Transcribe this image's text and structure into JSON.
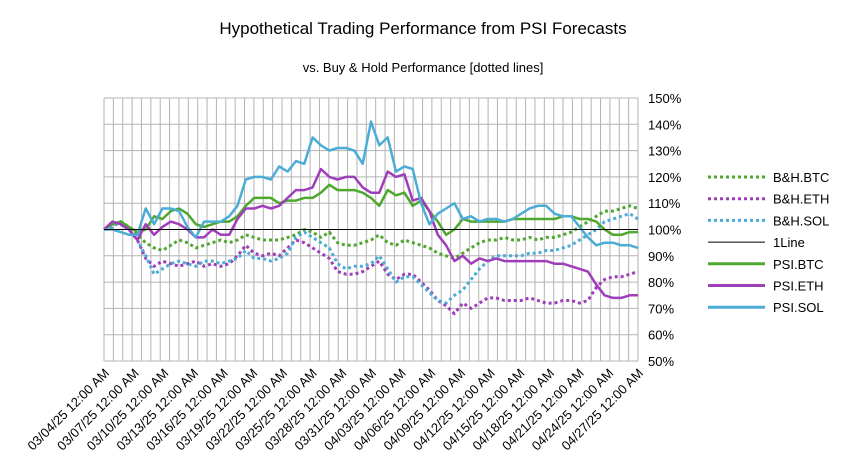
{
  "chart_data": {
    "type": "line",
    "title": "Hypothetical Trading Performance from PSI Forecasts",
    "subtitle": "vs. Buy & Hold Performance [dotted lines]",
    "xlabel": "",
    "ylabel": "",
    "ylim": [
      0.5,
      1.5
    ],
    "y_ticks": [
      "50%",
      "60%",
      "70%",
      "80%",
      "90%",
      "100%",
      "110%",
      "120%",
      "130%",
      "140%",
      "150%"
    ],
    "x_tick_labels": [
      "03/04/25 12:00 AM",
      "03/07/25 12:00 AM",
      "03/10/25 12:00 AM",
      "03/13/25 12:00 AM",
      "03/16/25 12:00 AM",
      "03/19/25 12:00 AM",
      "03/22/25 12:00 AM",
      "03/25/25 12:00 AM",
      "03/28/25 12:00 AM",
      "03/31/25 12:00 AM",
      "04/03/25 12:00 AM",
      "04/06/25 12:00 AM",
      "04/09/25 12:00 AM",
      "04/12/25 12:00 AM",
      "04/15/25 12:00 AM",
      "04/18/25 12:00 AM",
      "04/21/25 12:00 AM",
      "04/24/25 12:00 AM",
      "04/27/25 12:00 AM"
    ],
    "grid": true,
    "legend_position": "right",
    "series": [
      {
        "name": "B&H.BTC",
        "color": "#4ea72e",
        "style": "dotted",
        "values": [
          1.0,
          1.02,
          1.03,
          1.01,
          0.98,
          0.95,
          0.93,
          0.92,
          0.94,
          0.96,
          0.95,
          0.93,
          0.94,
          0.95,
          0.96,
          0.95,
          0.96,
          0.98,
          0.97,
          0.96,
          0.96,
          0.96,
          0.97,
          0.98,
          1.0,
          0.99,
          0.97,
          0.99,
          0.95,
          0.94,
          0.94,
          0.95,
          0.96,
          0.98,
          0.95,
          0.94,
          0.96,
          0.95,
          0.94,
          0.93,
          0.91,
          0.9,
          0.89,
          0.91,
          0.93,
          0.95,
          0.96,
          0.96,
          0.97,
          0.96,
          0.96,
          0.97,
          0.96,
          0.97,
          0.97,
          0.98,
          0.99,
          1.01,
          1.03,
          1.05,
          1.07,
          1.07,
          1.08,
          1.09,
          1.08
        ]
      },
      {
        "name": "B&H.ETH",
        "color": "#a03dba",
        "style": "dotted",
        "values": [
          1.0,
          1.02,
          1.02,
          1.0,
          0.96,
          0.89,
          0.86,
          0.88,
          0.87,
          0.86,
          0.87,
          0.88,
          0.86,
          0.87,
          0.86,
          0.87,
          0.9,
          0.94,
          0.91,
          0.9,
          0.91,
          0.9,
          0.93,
          0.96,
          0.95,
          0.93,
          0.91,
          0.89,
          0.84,
          0.83,
          0.83,
          0.84,
          0.86,
          0.88,
          0.83,
          0.81,
          0.83,
          0.83,
          0.8,
          0.77,
          0.73,
          0.71,
          0.68,
          0.72,
          0.7,
          0.72,
          0.74,
          0.74,
          0.73,
          0.73,
          0.73,
          0.74,
          0.73,
          0.72,
          0.72,
          0.73,
          0.73,
          0.72,
          0.73,
          0.78,
          0.81,
          0.82,
          0.82,
          0.83,
          0.84
        ]
      },
      {
        "name": "B&H.SOL",
        "color": "#4bacd6",
        "style": "dotted",
        "values": [
          1.0,
          1.01,
          1.03,
          1.0,
          0.96,
          0.9,
          0.83,
          0.85,
          0.87,
          0.88,
          0.87,
          0.86,
          0.88,
          0.88,
          0.87,
          0.88,
          0.89,
          0.92,
          0.89,
          0.89,
          0.88,
          0.89,
          0.91,
          0.97,
          0.99,
          0.97,
          0.95,
          0.93,
          0.87,
          0.85,
          0.86,
          0.86,
          0.87,
          0.9,
          0.85,
          0.8,
          0.82,
          0.82,
          0.79,
          0.76,
          0.73,
          0.72,
          0.75,
          0.77,
          0.81,
          0.85,
          0.88,
          0.9,
          0.9,
          0.9,
          0.9,
          0.91,
          0.91,
          0.92,
          0.92,
          0.93,
          0.94,
          0.96,
          0.98,
          1.0,
          1.03,
          1.04,
          1.05,
          1.06,
          1.04
        ]
      },
      {
        "name": "1Line",
        "color": "#000000",
        "style": "thin",
        "values": [
          1,
          1,
          1,
          1,
          1,
          1,
          1,
          1,
          1,
          1,
          1,
          1,
          1,
          1,
          1,
          1,
          1,
          1,
          1,
          1,
          1,
          1,
          1,
          1,
          1,
          1,
          1,
          1,
          1,
          1,
          1,
          1,
          1,
          1,
          1,
          1,
          1,
          1,
          1,
          1,
          1,
          1,
          1,
          1,
          1,
          1,
          1,
          1,
          1,
          1,
          1,
          1,
          1,
          1,
          1,
          1,
          1,
          1,
          1,
          1,
          1,
          1,
          1,
          1,
          1
        ]
      },
      {
        "name": "PSI.BTC",
        "color": "#4ea72e",
        "style": "solid",
        "values": [
          1.0,
          1.02,
          1.03,
          1.01,
          0.99,
          1.0,
          1.05,
          1.04,
          1.07,
          1.08,
          1.06,
          1.02,
          1.01,
          1.02,
          1.03,
          1.03,
          1.05,
          1.09,
          1.12,
          1.12,
          1.12,
          1.1,
          1.11,
          1.11,
          1.12,
          1.12,
          1.14,
          1.17,
          1.15,
          1.15,
          1.15,
          1.14,
          1.12,
          1.09,
          1.15,
          1.13,
          1.14,
          1.09,
          1.11,
          1.07,
          1.03,
          0.98,
          1.0,
          1.04,
          1.03,
          1.03,
          1.03,
          1.03,
          1.03,
          1.04,
          1.04,
          1.04,
          1.04,
          1.04,
          1.04,
          1.05,
          1.05,
          1.04,
          1.04,
          1.03,
          1.0,
          0.98,
          0.98,
          0.99,
          0.99
        ]
      },
      {
        "name": "PSI.ETH",
        "color": "#a03dba",
        "style": "solid",
        "values": [
          1.0,
          1.03,
          1.02,
          1.0,
          0.96,
          1.02,
          0.98,
          1.01,
          1.03,
          1.02,
          1.0,
          0.97,
          0.97,
          1.0,
          0.98,
          0.98,
          1.04,
          1.08,
          1.08,
          1.09,
          1.08,
          1.09,
          1.12,
          1.15,
          1.15,
          1.16,
          1.23,
          1.2,
          1.19,
          1.2,
          1.2,
          1.16,
          1.14,
          1.14,
          1.22,
          1.2,
          1.21,
          1.11,
          1.12,
          1.07,
          0.98,
          0.94,
          0.88,
          0.9,
          0.87,
          0.89,
          0.88,
          0.89,
          0.88,
          0.88,
          0.88,
          0.88,
          0.88,
          0.88,
          0.87,
          0.87,
          0.86,
          0.85,
          0.84,
          0.79,
          0.75,
          0.74,
          0.74,
          0.75,
          0.75
        ]
      },
      {
        "name": "PSI.SOL",
        "color": "#4bacd6",
        "style": "solid",
        "values": [
          1.0,
          1.0,
          0.99,
          0.98,
          0.98,
          1.08,
          1.02,
          1.08,
          1.08,
          1.07,
          1.01,
          0.97,
          1.03,
          1.03,
          1.03,
          1.05,
          1.09,
          1.19,
          1.2,
          1.2,
          1.19,
          1.24,
          1.22,
          1.26,
          1.25,
          1.35,
          1.32,
          1.3,
          1.31,
          1.31,
          1.3,
          1.25,
          1.41,
          1.32,
          1.35,
          1.22,
          1.24,
          1.23,
          1.1,
          1.02,
          1.06,
          1.08,
          1.1,
          1.04,
          1.05,
          1.03,
          1.04,
          1.04,
          1.03,
          1.04,
          1.06,
          1.08,
          1.09,
          1.09,
          1.06,
          1.05,
          1.05,
          1.01,
          0.97,
          0.94,
          0.95,
          0.95,
          0.94,
          0.94,
          0.93
        ]
      }
    ]
  }
}
